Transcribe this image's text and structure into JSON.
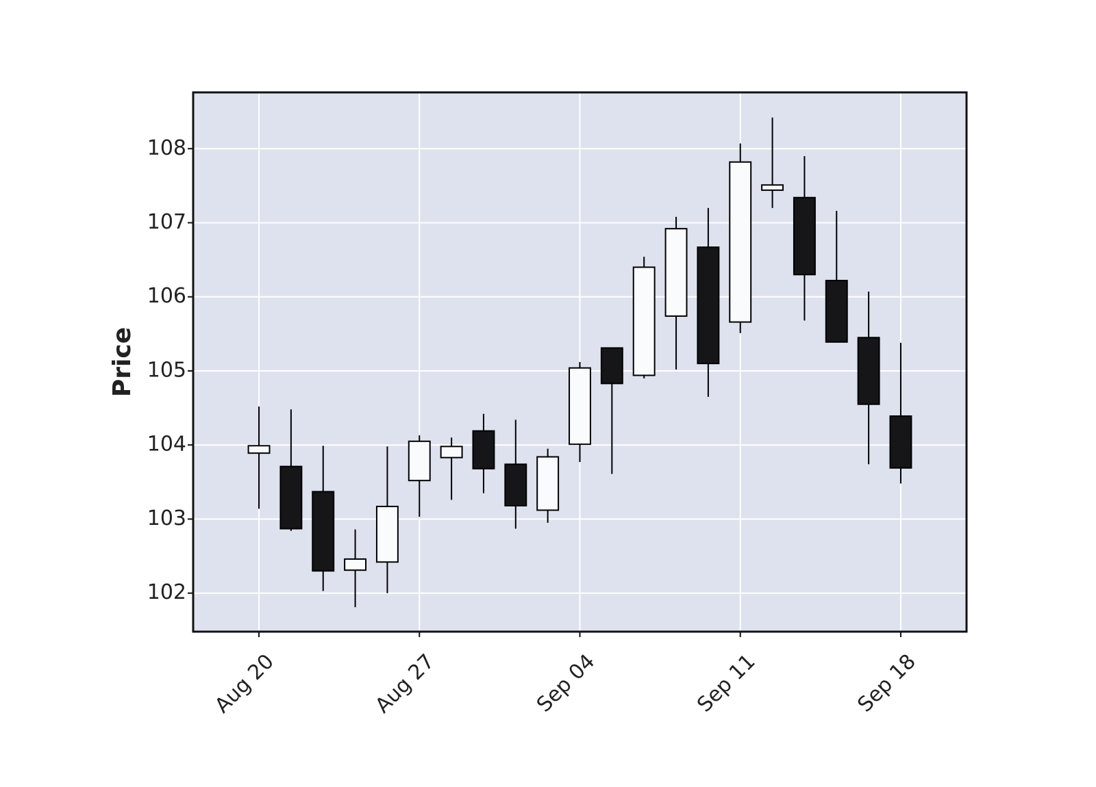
{
  "chart_data": {
    "type": "candlestick",
    "y_label": "Price",
    "categories": [
      "Aug 20",
      null,
      null,
      null,
      null,
      "Aug 27",
      null,
      null,
      null,
      null,
      "Sep 04",
      null,
      null,
      null,
      null,
      "Sep 11",
      null,
      null,
      null,
      null,
      "Sep 18"
    ],
    "open": [
      103.89,
      103.71,
      103.37,
      102.31,
      102.42,
      103.52,
      103.83,
      104.19,
      103.74,
      103.12,
      104.01,
      105.31,
      104.94,
      105.74,
      106.67,
      105.66,
      107.44,
      107.34,
      106.22,
      105.45,
      104.39
    ],
    "high": [
      104.52,
      104.48,
      103.99,
      102.86,
      103.98,
      104.13,
      104.1,
      104.42,
      104.34,
      103.95,
      105.12,
      105.31,
      106.54,
      107.08,
      107.2,
      108.07,
      108.42,
      107.9,
      107.16,
      106.07,
      105.38
    ],
    "low": [
      103.14,
      102.84,
      102.03,
      101.81,
      102.0,
      103.03,
      103.26,
      103.35,
      102.87,
      102.95,
      103.77,
      103.61,
      104.9,
      105.02,
      104.65,
      105.51,
      107.2,
      105.68,
      105.39,
      103.74,
      103.48
    ],
    "close": [
      103.99,
      102.87,
      102.3,
      102.46,
      103.17,
      104.05,
      103.98,
      103.68,
      103.18,
      103.84,
      105.04,
      104.83,
      106.4,
      106.92,
      105.1,
      107.82,
      107.51,
      106.3,
      105.39,
      104.55,
      103.69
    ],
    "up_color": "#fafbfd",
    "down_color": "#161618",
    "background": "#dde2ee",
    "ylim": [
      101.48,
      108.76
    ],
    "yticks": [
      102,
      103,
      104,
      105,
      106,
      107,
      108
    ],
    "grid": true
  }
}
